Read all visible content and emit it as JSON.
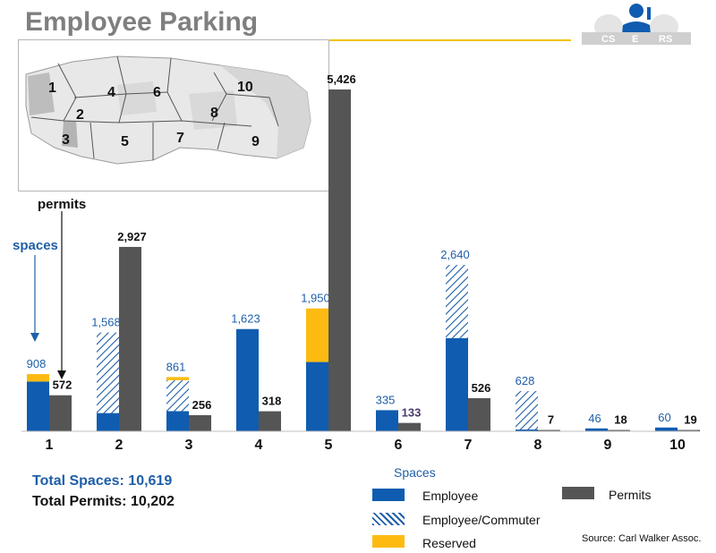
{
  "title": "Employee Parking",
  "logo": {
    "text_left": "CS",
    "text_mid": "E",
    "text_right": "RS"
  },
  "map": {
    "zone_labels": [
      "1",
      "2",
      "3",
      "4",
      "5",
      "6",
      "7",
      "8",
      "9",
      "10"
    ]
  },
  "annotations": {
    "permits": "permits",
    "spaces": "spaces"
  },
  "totals": {
    "spaces": "Total Spaces: 10,619",
    "permits": "Total Permits:  10,202"
  },
  "legend": {
    "title": "Spaces",
    "employee": "Employee",
    "commuter": "Employee/Commuter",
    "reserved": "Reserved",
    "permits": "Permits"
  },
  "source": "Source: Carl Walker Assoc.",
  "colors": {
    "employee": "#0f5cb0",
    "permits": "#555555",
    "reserved": "#fdbb12",
    "commuter": "#1f5fa8",
    "title": "#7f7f7f",
    "accent": "#f2c200"
  },
  "chart_data": {
    "type": "bar",
    "categories": [
      "1",
      "2",
      "3",
      "4",
      "5",
      "6",
      "7",
      "8",
      "9",
      "10"
    ],
    "space_labels": [
      "908",
      "1,568",
      "861",
      "1,623",
      "1,950",
      "335",
      "2,640",
      "628",
      "46",
      "60"
    ],
    "permit_labels": [
      "572",
      "2,927",
      "256",
      "318",
      "5,426",
      "133",
      "526",
      "7",
      "18",
      "19"
    ],
    "series": [
      {
        "name": "Employee",
        "values": [
          790,
          290,
          320,
          1623,
          1100,
          335,
          1480,
          18,
          46,
          60
        ]
      },
      {
        "name": "Employee/Commuter",
        "values": [
          0,
          1278,
          491,
          0,
          0,
          0,
          1160,
          610,
          0,
          0
        ]
      },
      {
        "name": "Reserved",
        "values": [
          118,
          0,
          50,
          0,
          850,
          0,
          0,
          0,
          0,
          0
        ]
      },
      {
        "name": "Permits",
        "values": [
          572,
          2927,
          256,
          318,
          5426,
          133,
          526,
          7,
          18,
          19
        ]
      }
    ],
    "ylim": [
      0,
      5426
    ],
    "legend_position": "bottom-right"
  }
}
